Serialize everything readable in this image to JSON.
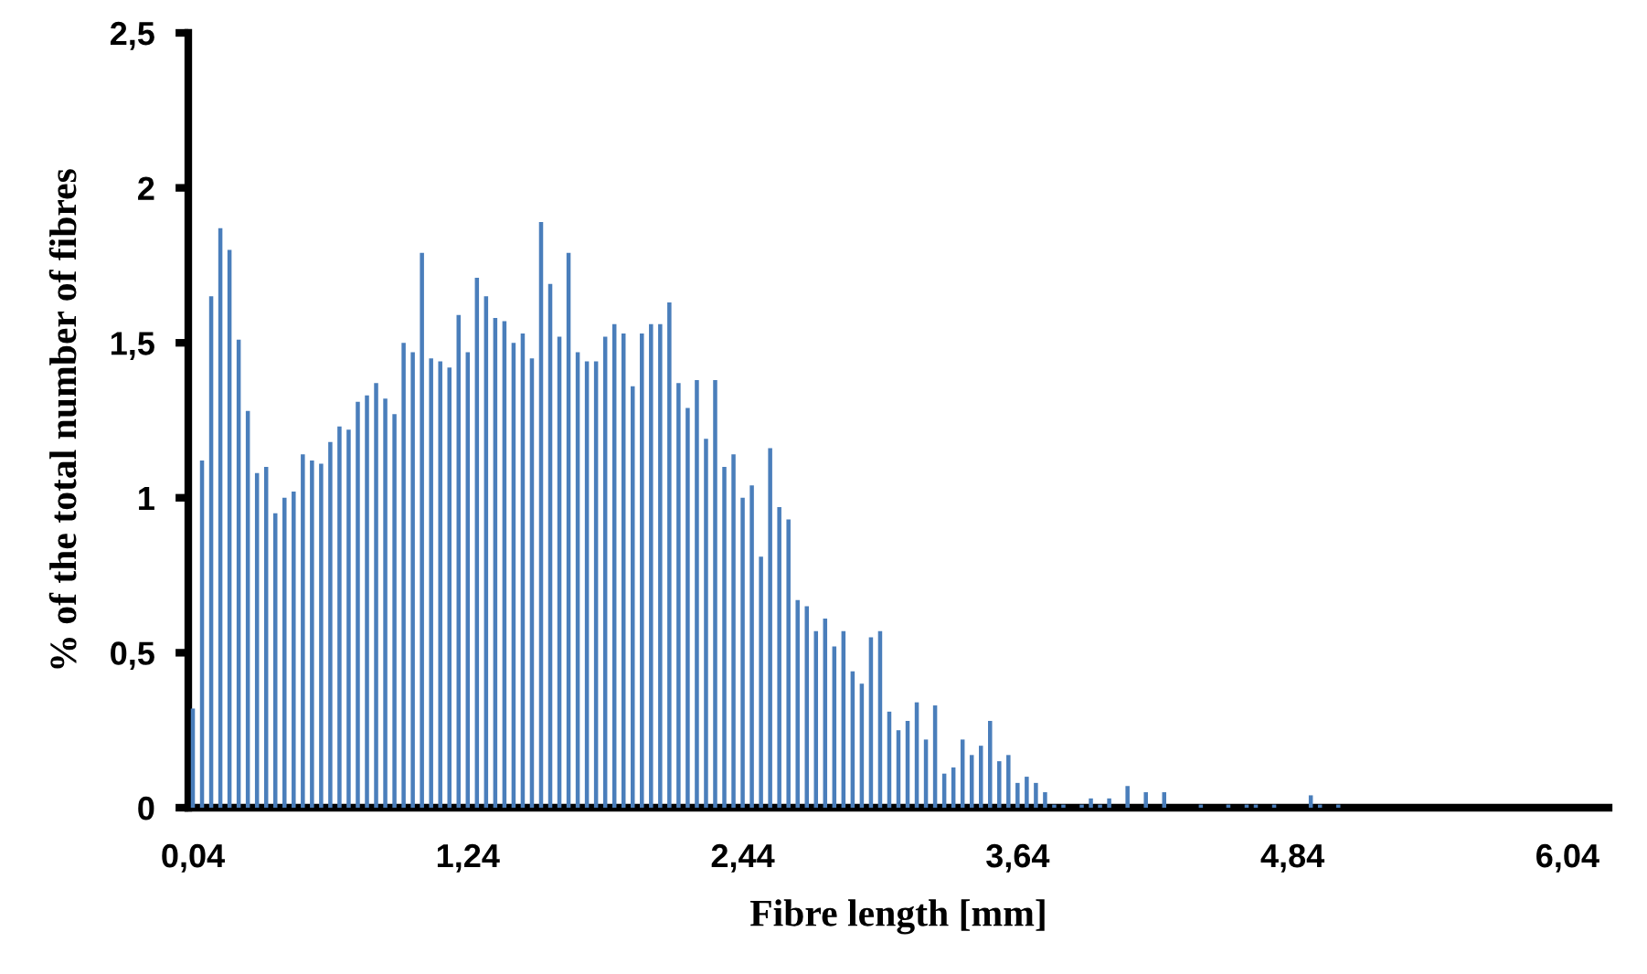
{
  "chart_data": {
    "type": "bar",
    "xlabel": "Fibre length [mm]",
    "ylabel": "% of the total number of fibres",
    "color": "#4a7ebb",
    "ylim": [
      0,
      2.5
    ],
    "yticks": [
      0,
      {
        "value": 0.5,
        "label": "0,5"
      },
      1,
      {
        "value": 1.5,
        "label": "1,5"
      },
      2,
      {
        "value": 2.5,
        "label": "2,5"
      }
    ],
    "grid": false,
    "legend": false,
    "categories": [
      "0,04",
      null,
      null,
      null,
      null,
      null,
      null,
      null,
      null,
      null,
      null,
      null,
      null,
      null,
      null,
      null,
      null,
      null,
      null,
      null,
      null,
      null,
      null,
      null,
      null,
      null,
      null,
      null,
      null,
      null,
      "1,24",
      null,
      null,
      null,
      null,
      null,
      null,
      null,
      null,
      null,
      null,
      null,
      null,
      null,
      null,
      null,
      null,
      null,
      null,
      null,
      null,
      null,
      null,
      null,
      null,
      null,
      null,
      null,
      null,
      null,
      "2,44",
      null,
      null,
      null,
      null,
      null,
      null,
      null,
      null,
      null,
      null,
      null,
      null,
      null,
      null,
      null,
      null,
      null,
      null,
      null,
      null,
      null,
      null,
      null,
      null,
      null,
      null,
      null,
      null,
      null,
      "3,64",
      null,
      null,
      null,
      null,
      null,
      null,
      null,
      null,
      null,
      null,
      null,
      null,
      null,
      null,
      null,
      null,
      null,
      null,
      null,
      null,
      null,
      null,
      null,
      null,
      null,
      null,
      null,
      null,
      null,
      "4,84",
      null,
      null,
      null,
      null,
      null,
      null,
      null,
      null,
      null,
      null,
      null,
      null,
      null,
      null,
      null,
      null,
      null,
      null,
      null,
      null,
      null,
      null,
      null,
      null,
      null,
      null,
      null,
      null,
      null,
      "6,04",
      null,
      null,
      null,
      null
    ],
    "values": [
      0.32,
      1.12,
      1.65,
      1.87,
      1.8,
      1.51,
      1.28,
      1.08,
      1.1,
      0.95,
      1.0,
      1.02,
      1.14,
      1.12,
      1.11,
      1.18,
      1.23,
      1.22,
      1.31,
      1.33,
      1.37,
      1.32,
      1.27,
      1.5,
      1.47,
      1.79,
      1.45,
      1.44,
      1.42,
      1.59,
      1.47,
      1.71,
      1.65,
      1.58,
      1.57,
      1.5,
      1.53,
      1.45,
      1.89,
      1.69,
      1.52,
      1.79,
      1.47,
      1.44,
      1.44,
      1.52,
      1.56,
      1.53,
      1.36,
      1.53,
      1.56,
      1.56,
      1.63,
      1.37,
      1.29,
      1.38,
      1.19,
      1.38,
      1.1,
      1.14,
      1.0,
      1.04,
      0.81,
      1.16,
      0.97,
      0.93,
      0.67,
      0.65,
      0.57,
      0.61,
      0.52,
      0.57,
      0.44,
      0.4,
      0.55,
      0.57,
      0.31,
      0.25,
      0.28,
      0.34,
      0.22,
      0.33,
      0.11,
      0.13,
      0.22,
      0.17,
      0.2,
      0.28,
      0.15,
      0.17,
      0.08,
      0.1,
      0.08,
      0.05,
      0.01,
      0.01,
      0,
      0.01,
      0.03,
      0.01,
      0.03,
      0,
      0.07,
      0,
      0.05,
      0,
      0.05,
      0,
      0,
      0,
      0.01,
      0,
      0,
      0.01,
      0,
      0.01,
      0.01,
      0,
      0.01,
      0,
      0,
      0,
      0.04,
      0.01,
      0,
      0.01,
      0,
      0,
      0,
      0,
      0,
      0,
      0,
      0,
      0,
      0,
      0,
      0,
      0,
      0,
      0,
      0,
      0,
      0,
      0,
      0,
      0,
      0,
      0,
      0,
      0,
      0,
      0,
      0,
      0
    ]
  }
}
